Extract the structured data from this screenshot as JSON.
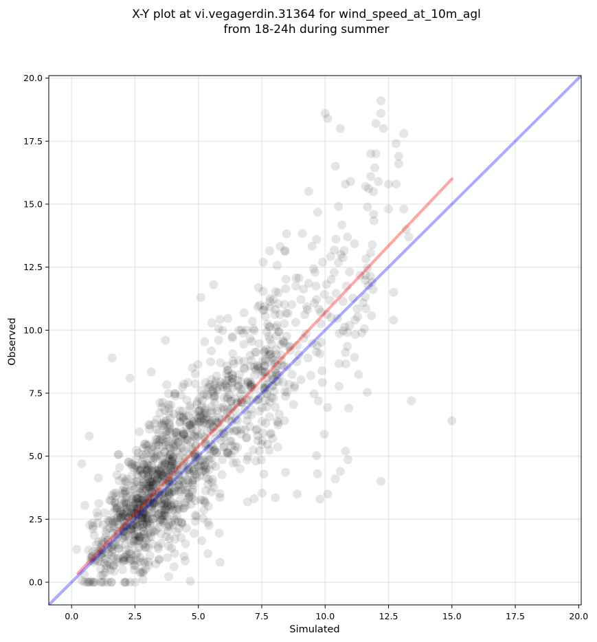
{
  "chart_data": {
    "type": "scatter",
    "title_lines": [
      "X-Y plot at vi.vegagerdin.31364 for wind_speed_at_10m_agl",
      "from 18-24h during summer"
    ],
    "xlabel": "Simulated",
    "ylabel": "Observed",
    "xlim": [
      -0.9,
      20.1
    ],
    "ylim": [
      -0.9,
      20.1
    ],
    "xticks": [
      0.0,
      2.5,
      5.0,
      7.5,
      10.0,
      12.5,
      15.0,
      17.5,
      20.0
    ],
    "yticks": [
      0.0,
      2.5,
      5.0,
      7.5,
      10.0,
      12.5,
      15.0,
      17.5,
      20.0
    ],
    "xtick_labels": [
      "0.0",
      "2.5",
      "5.0",
      "7.5",
      "10.0",
      "12.5",
      "15.0",
      "17.5",
      "20.0"
    ],
    "ytick_labels": [
      "0.0",
      "2.5",
      "5.0",
      "7.5",
      "10.0",
      "12.5",
      "15.0",
      "17.5",
      "20.0"
    ],
    "grid": true,
    "point_color": "#000000",
    "point_opacity": 0.1,
    "approx_point_count": 1400,
    "highlighted_points": [
      {
        "x": 10.0,
        "y": 18.6
      },
      {
        "x": 10.1,
        "y": 18.4
      },
      {
        "x": 10.6,
        "y": 18.0
      },
      {
        "x": 12.2,
        "y": 19.1
      },
      {
        "x": 12.2,
        "y": 18.6
      },
      {
        "x": 12.0,
        "y": 18.2
      },
      {
        "x": 12.3,
        "y": 18.0
      },
      {
        "x": 13.1,
        "y": 17.8
      },
      {
        "x": 12.8,
        "y": 17.4
      },
      {
        "x": 11.8,
        "y": 17.0
      },
      {
        "x": 12.0,
        "y": 17.0
      },
      {
        "x": 12.9,
        "y": 16.9
      },
      {
        "x": 12.9,
        "y": 16.6
      },
      {
        "x": 11.8,
        "y": 16.1
      },
      {
        "x": 12.1,
        "y": 15.9
      },
      {
        "x": 12.5,
        "y": 15.8
      },
      {
        "x": 12.8,
        "y": 15.8
      },
      {
        "x": 11.0,
        "y": 15.9
      },
      {
        "x": 10.8,
        "y": 15.8
      },
      {
        "x": 11.6,
        "y": 15.7
      },
      {
        "x": 11.9,
        "y": 15.5
      },
      {
        "x": 12.5,
        "y": 14.8
      },
      {
        "x": 13.1,
        "y": 14.8
      },
      {
        "x": 13.3,
        "y": 13.7
      },
      {
        "x": 13.2,
        "y": 14.0
      },
      {
        "x": 12.7,
        "y": 11.5
      },
      {
        "x": 12.7,
        "y": 10.4
      },
      {
        "x": 13.4,
        "y": 7.2
      },
      {
        "x": 15.0,
        "y": 6.4
      },
      {
        "x": 12.2,
        "y": 4.0
      },
      {
        "x": 10.8,
        "y": 5.2
      },
      {
        "x": 10.6,
        "y": 4.4
      },
      {
        "x": 10.4,
        "y": 4.1
      },
      {
        "x": 10.1,
        "y": 3.5
      },
      {
        "x": 9.8,
        "y": 3.3
      },
      {
        "x": 9.7,
        "y": 4.3
      },
      {
        "x": 8.9,
        "y": 3.5
      },
      {
        "x": 1.6,
        "y": 8.9
      },
      {
        "x": 2.3,
        "y": 8.1
      },
      {
        "x": 3.7,
        "y": 9.6
      },
      {
        "x": 5.1,
        "y": 11.3
      },
      {
        "x": 5.6,
        "y": 11.8
      },
      {
        "x": 0.5,
        "y": 0.3
      },
      {
        "x": 0.2,
        "y": 1.3
      },
      {
        "x": 0.4,
        "y": 4.7
      },
      {
        "x": 0.7,
        "y": 5.8
      }
    ],
    "lines": [
      {
        "name": "",
        "color": "#ff0000",
        "opacity": 0.35,
        "x": [
          0.25,
          15.0
        ],
        "y": [
          0.35,
          16.0
        ]
      },
      {
        "name": "",
        "color": "#0000ff",
        "opacity": 0.33,
        "x": [
          -0.9,
          20.1
        ],
        "y": [
          -0.9,
          20.1
        ]
      }
    ]
  }
}
